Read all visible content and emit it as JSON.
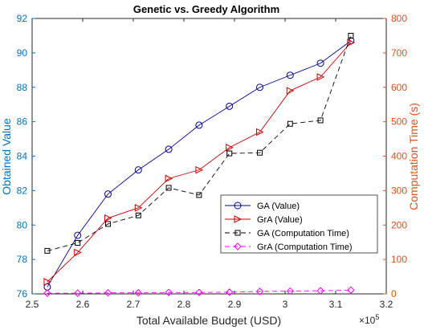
{
  "chart_data": {
    "type": "line",
    "title": "Genetic vs. Greedy Algorithm",
    "xlabel": "Total Available Budget (USD)",
    "x_multiplier_label": "×10",
    "x_multiplier_exponent": "5",
    "ylabel_left": "Obtained Value",
    "ylabel_right": "Computation Time (s)",
    "xlim": [
      2.5,
      3.2
    ],
    "ylim_left": [
      76,
      92
    ],
    "ylim_right": [
      0,
      800
    ],
    "x_ticks": [
      "2.5",
      "2.6",
      "2.7",
      "2.8",
      "2.9",
      "3",
      "3.1",
      "3.2"
    ],
    "y_left_ticks": [
      "76",
      "78",
      "80",
      "82",
      "84",
      "86",
      "88",
      "90",
      "92"
    ],
    "y_right_ticks": [
      "0",
      "100",
      "200",
      "300",
      "400",
      "500",
      "600",
      "700",
      "800"
    ],
    "grid": false,
    "legend_position": "lower-right",
    "colors": {
      "left_axis": "#0072bd",
      "right_axis": "#d95319",
      "ga_value": "#00008b",
      "gra_value": "#cc0000",
      "ga_time": "#000000",
      "gra_time": "#ff00ff"
    },
    "x": [
      2.53,
      2.59,
      2.65,
      2.71,
      2.77,
      2.83,
      2.89,
      2.95,
      3.01,
      3.07,
      3.13
    ],
    "series": [
      {
        "name": "GA (Value)",
        "axis": "left",
        "marker": "circle",
        "line": "solid",
        "values": [
          76.4,
          79.4,
          81.8,
          83.2,
          84.4,
          85.8,
          86.9,
          88.0,
          88.7,
          89.4,
          90.7
        ]
      },
      {
        "name": "GrA (Value)",
        "axis": "left",
        "marker": "triangle-right",
        "line": "solid",
        "values": [
          76.7,
          78.4,
          80.4,
          81.0,
          82.7,
          83.2,
          84.5,
          85.4,
          87.8,
          88.6,
          90.6
        ]
      },
      {
        "name": "GA (Computation Time)",
        "axis": "right",
        "marker": "square",
        "line": "dashed",
        "values": [
          125,
          148,
          203,
          228,
          308,
          287,
          408,
          410,
          494,
          504,
          750
        ]
      },
      {
        "name": "GrA (Computation Time)",
        "axis": "right",
        "marker": "diamond",
        "line": "dashed",
        "values": [
          2,
          2,
          3,
          3,
          4,
          4,
          5,
          7,
          8,
          9,
          11
        ]
      }
    ]
  }
}
